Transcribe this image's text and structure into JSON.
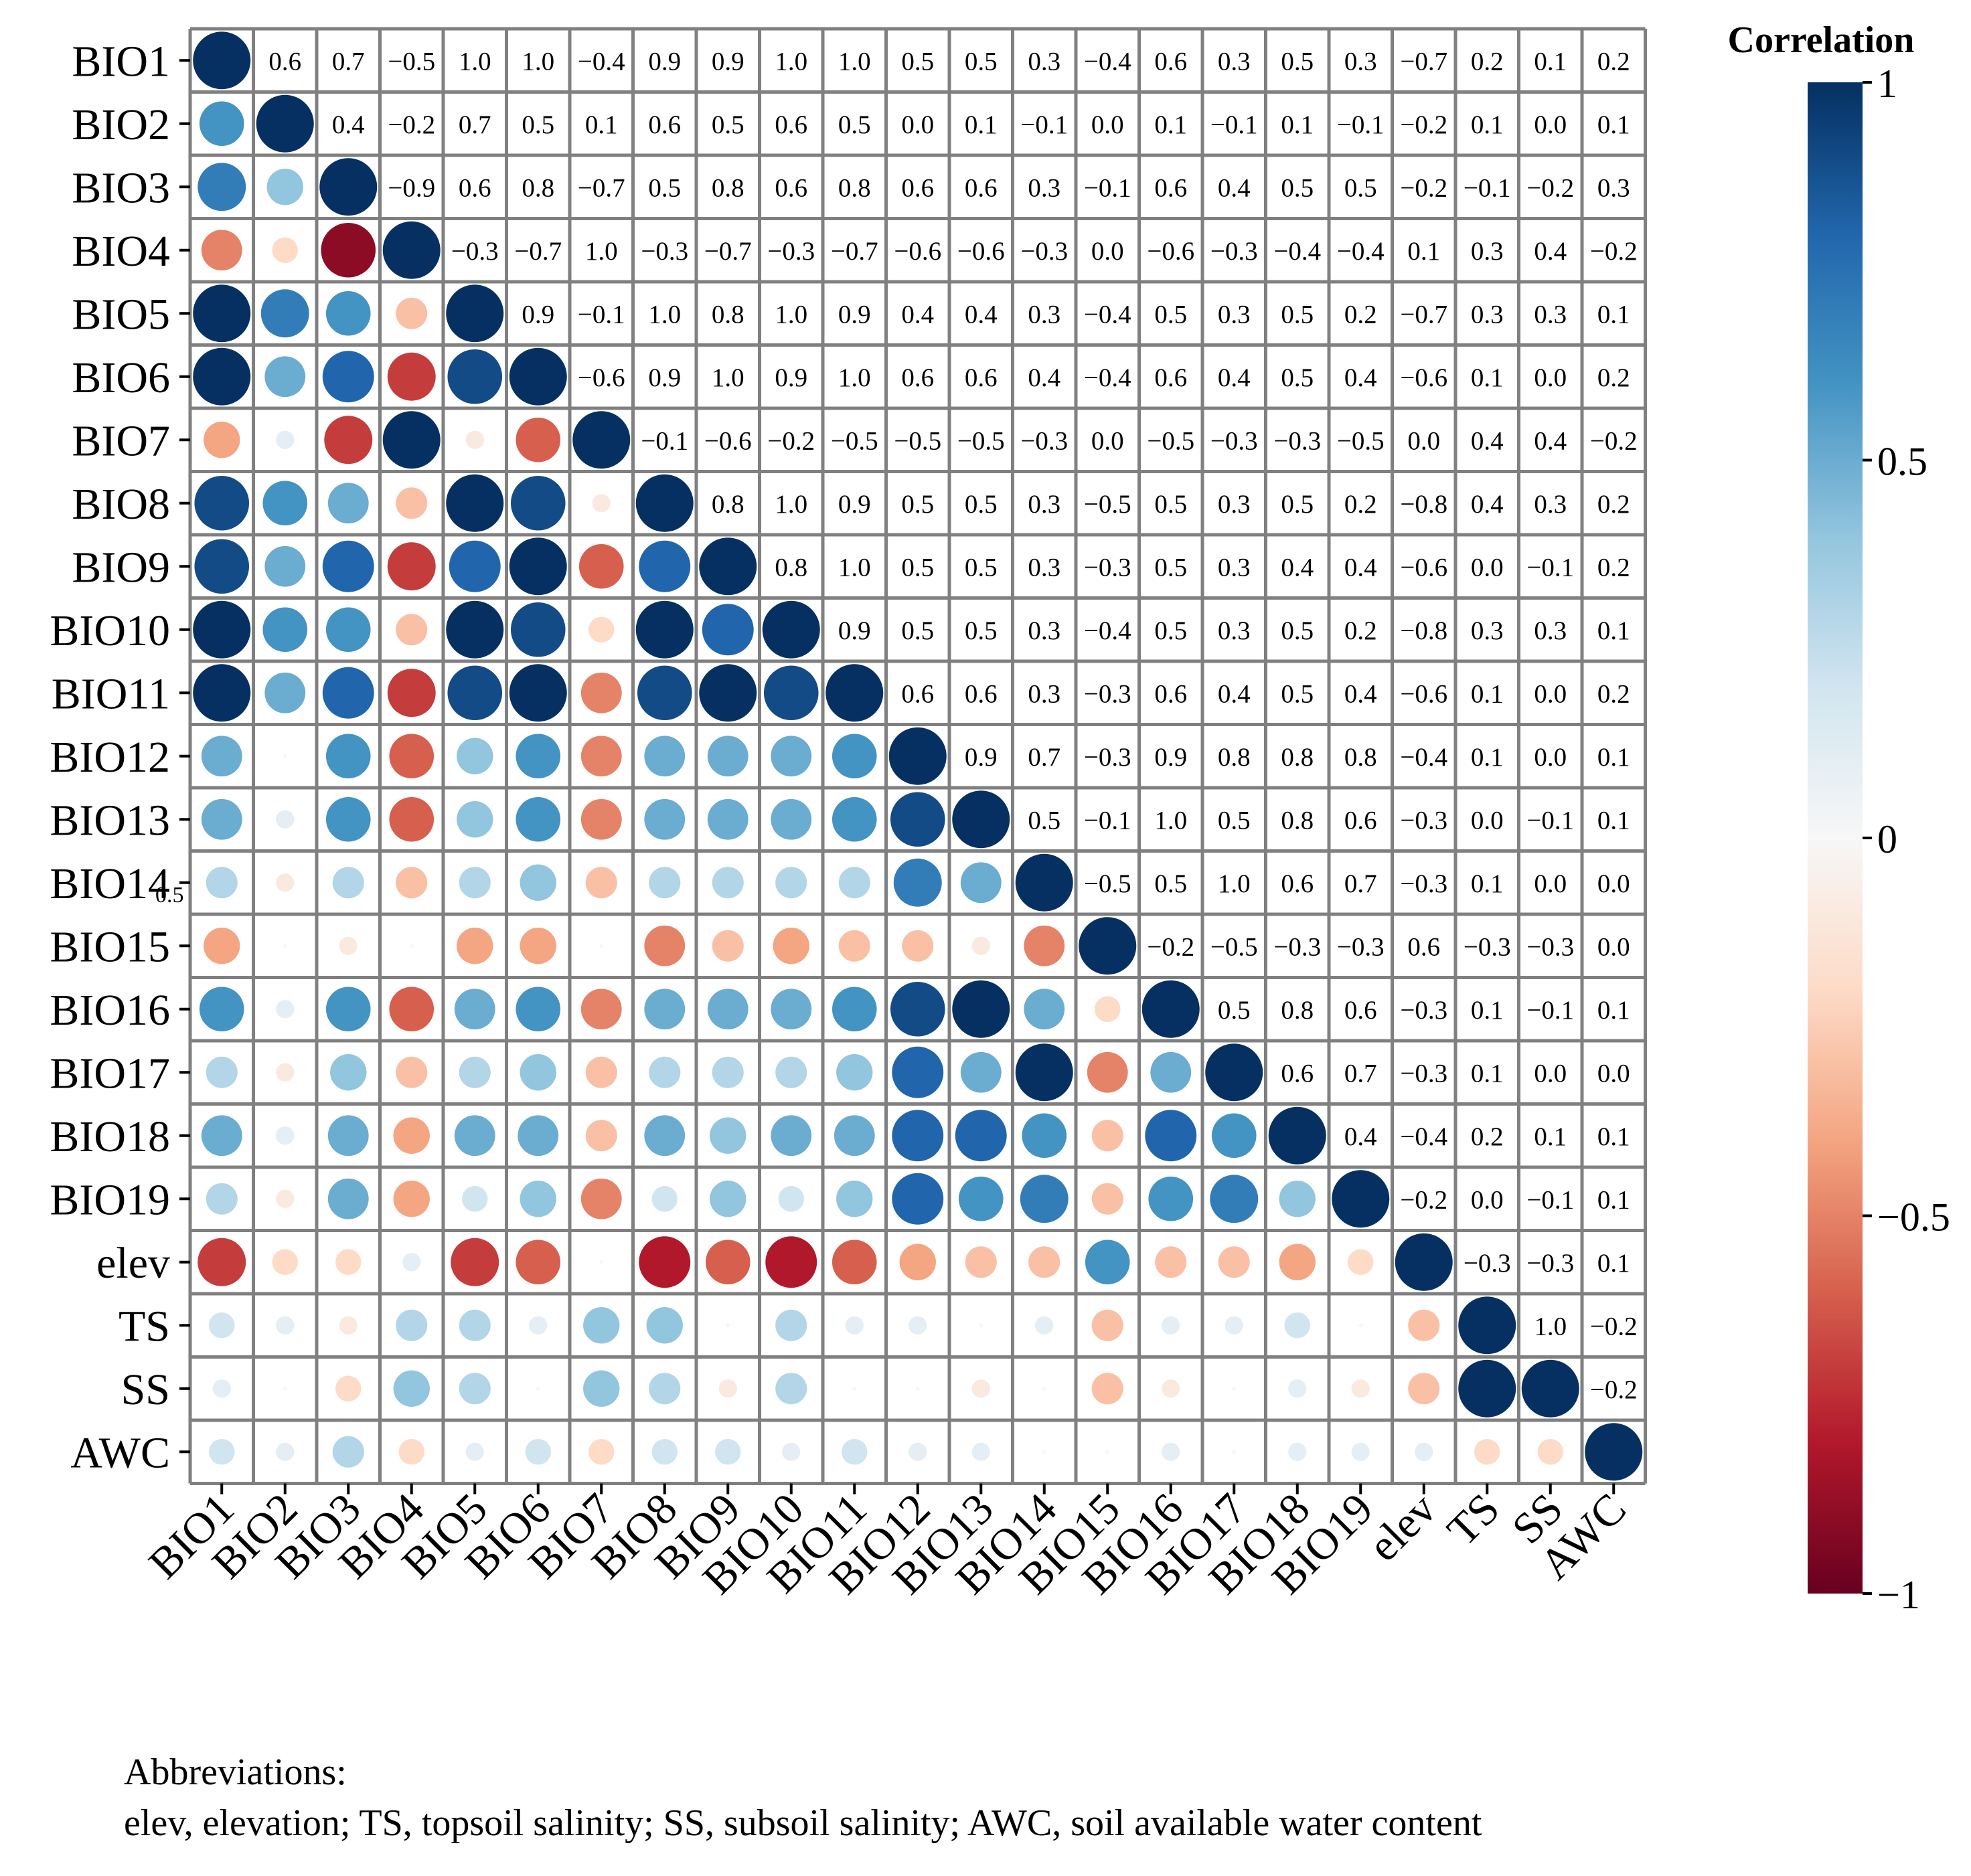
{
  "chart_data": {
    "type": "heatmap",
    "title": "",
    "colorbar": {
      "title": "Correlation",
      "range": [
        -1,
        1
      ],
      "ticks": [
        1,
        0.5,
        0,
        -0.5,
        -1
      ],
      "tick_labels": [
        "1",
        "0.5",
        "0",
        "−0.5",
        "−1"
      ],
      "colors": {
        "neg1": "#67001f",
        "neg075": "#b2182b",
        "neg05": "#d6604d",
        "neg025": "#f4a582",
        "neg01": "#fddbc7",
        "zero": "#f7f7f7",
        "pos01": "#d1e5f0",
        "pos025": "#92c5de",
        "pos05": "#4393c3",
        "pos075": "#2166ac",
        "pos1": "#053061"
      }
    },
    "variables": [
      "BIO1",
      "BIO2",
      "BIO3",
      "BIO4",
      "BIO5",
      "BIO6",
      "BIO7",
      "BIO8",
      "BIO9",
      "BIO10",
      "BIO11",
      "BIO12",
      "BIO13",
      "BIO14",
      "BIO15",
      "BIO16",
      "BIO17",
      "BIO18",
      "BIO19",
      "elev",
      "TS",
      "SS",
      "AWC"
    ],
    "lower_triangle": "circles (size and color proportional to correlation)",
    "upper_triangle": "numeric values",
    "upper_labels": [
      [
        "0.6",
        "0.7",
        "−0.5",
        "1.0",
        "1.0",
        "−0.4",
        "0.9",
        "0.9",
        "1.0",
        "1.0",
        "0.5",
        "0.5",
        "0.3",
        "−0.4",
        "0.6",
        "0.3",
        "0.5",
        "0.3",
        "−0.7",
        "0.2",
        "0.1",
        "0.2"
      ],
      [
        "0.4",
        "−0.2",
        "0.7",
        "0.5",
        "0.1",
        "0.6",
        "0.5",
        "0.6",
        "0.5",
        "0.0",
        "0.1",
        "−0.1",
        "0.0",
        "0.1",
        "−0.1",
        "0.1",
        "−0.1",
        "−0.2",
        "0.1",
        "0.0",
        "0.1"
      ],
      [
        "−0.9",
        "0.6",
        "0.8",
        "−0.7",
        "0.5",
        "0.8",
        "0.6",
        "0.8",
        "0.6",
        "0.6",
        "0.3",
        "−0.1",
        "0.6",
        "0.4",
        "0.5",
        "0.5",
        "−0.2",
        "−0.1",
        "−0.2",
        "0.3"
      ],
      [
        "−0.3",
        "−0.7",
        "1.0",
        "−0.3",
        "−0.7",
        "−0.3",
        "−0.7",
        "−0.6",
        "−0.6",
        "−0.3",
        "0.0",
        "−0.6",
        "−0.3",
        "−0.4",
        "−0.4",
        "0.1",
        "0.3",
        "0.4",
        "−0.2"
      ],
      [
        "0.9",
        "−0.1",
        "1.0",
        "0.8",
        "1.0",
        "0.9",
        "0.4",
        "0.4",
        "0.3",
        "−0.4",
        "0.5",
        "0.3",
        "0.5",
        "0.2",
        "−0.7",
        "0.3",
        "0.3",
        "0.1"
      ],
      [
        "−0.6",
        "0.9",
        "1.0",
        "0.9",
        "1.0",
        "0.6",
        "0.6",
        "0.4",
        "−0.4",
        "0.6",
        "0.4",
        "0.5",
        "0.4",
        "−0.6",
        "0.1",
        "0.0",
        "0.2"
      ],
      [
        "−0.1",
        "−0.6",
        "−0.2",
        "−0.5",
        "−0.5",
        "−0.5",
        "−0.3",
        "0.0",
        "−0.5",
        "−0.3",
        "−0.3",
        "−0.5",
        "0.0",
        "0.4",
        "0.4",
        "−0.2"
      ],
      [
        "0.8",
        "1.0",
        "0.9",
        "0.5",
        "0.5",
        "0.3",
        "−0.5",
        "0.5",
        "0.3",
        "0.5",
        "0.2",
        "−0.8",
        "0.4",
        "0.3",
        "0.2"
      ],
      [
        "0.8",
        "1.0",
        "0.5",
        "0.5",
        "0.3",
        "−0.3",
        "0.5",
        "0.3",
        "0.4",
        "0.4",
        "−0.6",
        "0.0",
        "−0.1",
        "0.2"
      ],
      [
        "0.9",
        "0.5",
        "0.5",
        "0.3",
        "−0.4",
        "0.5",
        "0.3",
        "0.5",
        "0.2",
        "−0.8",
        "0.3",
        "0.3",
        "0.1"
      ],
      [
        "0.6",
        "0.6",
        "0.3",
        "−0.3",
        "0.6",
        "0.4",
        "0.5",
        "0.4",
        "−0.6",
        "0.1",
        "0.0",
        "0.2"
      ],
      [
        "0.9",
        "0.7",
        "−0.3",
        "0.9",
        "0.8",
        "0.8",
        "0.8",
        "−0.4",
        "0.1",
        "0.0",
        "0.1"
      ],
      [
        "0.5",
        "−0.1",
        "1.0",
        "0.5",
        "0.8",
        "0.6",
        "−0.3",
        "0.0",
        "−0.1",
        "0.1"
      ],
      [
        "−0.5",
        "0.5",
        "1.0",
        "0.6",
        "0.7",
        "−0.3",
        "0.1",
        "0.0",
        "0.0"
      ],
      [
        "−0.2",
        "−0.5",
        "−0.3",
        "−0.3",
        "0.6",
        "−0.3",
        "−0.3",
        "0.0"
      ],
      [
        "0.5",
        "0.8",
        "0.6",
        "−0.3",
        "0.1",
        "−0.1",
        "0.1"
      ],
      [
        "0.6",
        "0.7",
        "−0.3",
        "0.1",
        "0.0",
        "0.0"
      ],
      [
        "0.4",
        "−0.4",
        "0.2",
        "0.1",
        "0.1"
      ],
      [
        "−0.2",
        "0.0",
        "−0.1",
        "0.1"
      ],
      [
        "−0.3",
        "−0.3",
        "0.1"
      ],
      [
        "1.0",
        "−0.2"
      ],
      [
        "−0.2"
      ],
      []
    ],
    "lower_values": [
      [],
      [
        0.6
      ],
      [
        0.7,
        0.4
      ],
      [
        -0.5,
        -0.2,
        -0.9
      ],
      [
        1.0,
        0.7,
        0.6,
        -0.3
      ],
      [
        1.0,
        0.5,
        0.8,
        -0.7,
        0.9
      ],
      [
        -0.4,
        0.1,
        -0.7,
        1.0,
        -0.1,
        -0.6
      ],
      [
        0.9,
        0.6,
        0.5,
        -0.3,
        1.0,
        0.9,
        -0.1
      ],
      [
        0.9,
        0.5,
        0.8,
        -0.7,
        0.8,
        1.0,
        -0.6,
        0.8
      ],
      [
        1.0,
        0.6,
        0.6,
        -0.3,
        1.0,
        0.9,
        -0.2,
        1.0,
        0.8
      ],
      [
        1.0,
        0.5,
        0.8,
        -0.7,
        0.9,
        1.0,
        -0.5,
        0.9,
        1.0,
        0.9
      ],
      [
        0.5,
        0.0,
        0.6,
        -0.6,
        0.4,
        0.6,
        -0.5,
        0.5,
        0.5,
        0.5,
        0.6
      ],
      [
        0.5,
        0.1,
        0.6,
        -0.6,
        0.4,
        0.6,
        -0.5,
        0.5,
        0.5,
        0.5,
        0.6,
        0.9
      ],
      [
        0.3,
        -0.1,
        0.3,
        -0.3,
        0.3,
        0.4,
        -0.3,
        0.3,
        0.3,
        0.3,
        0.3,
        0.7,
        0.5
      ],
      [
        -0.4,
        0.0,
        -0.1,
        0.0,
        -0.4,
        -0.4,
        0.0,
        -0.5,
        -0.3,
        -0.4,
        -0.3,
        -0.3,
        -0.1,
        -0.5
      ],
      [
        0.6,
        0.1,
        0.6,
        -0.6,
        0.5,
        0.6,
        -0.5,
        0.5,
        0.5,
        0.5,
        0.6,
        0.9,
        1.0,
        0.5,
        -0.2
      ],
      [
        0.3,
        -0.1,
        0.4,
        -0.3,
        0.3,
        0.4,
        -0.3,
        0.3,
        0.3,
        0.3,
        0.4,
        0.8,
        0.5,
        1.0,
        -0.5,
        0.5
      ],
      [
        0.5,
        0.1,
        0.5,
        -0.4,
        0.5,
        0.5,
        -0.3,
        0.5,
        0.4,
        0.5,
        0.5,
        0.8,
        0.8,
        0.6,
        -0.3,
        0.8,
        0.6
      ],
      [
        0.3,
        -0.1,
        0.5,
        -0.4,
        0.2,
        0.4,
        -0.5,
        0.2,
        0.4,
        0.2,
        0.4,
        0.8,
        0.6,
        0.7,
        -0.3,
        0.6,
        0.7,
        0.4
      ],
      [
        -0.7,
        -0.2,
        -0.2,
        0.1,
        -0.7,
        -0.6,
        0.0,
        -0.8,
        -0.6,
        -0.8,
        -0.6,
        -0.4,
        -0.3,
        -0.3,
        0.6,
        -0.3,
        -0.3,
        -0.4,
        -0.2
      ],
      [
        0.2,
        0.1,
        -0.1,
        0.3,
        0.3,
        0.1,
        0.4,
        0.4,
        0.0,
        0.3,
        0.1,
        0.1,
        0.0,
        0.1,
        -0.3,
        0.1,
        0.1,
        0.2,
        0.0,
        -0.3
      ],
      [
        0.1,
        0.0,
        -0.2,
        0.4,
        0.3,
        0.0,
        0.4,
        0.3,
        -0.1,
        0.3,
        0.0,
        0.0,
        -0.1,
        0.0,
        -0.3,
        -0.1,
        0.0,
        0.1,
        -0.1,
        -0.3,
        1.0
      ],
      [
        0.2,
        0.1,
        0.3,
        -0.2,
        0.1,
        0.2,
        -0.2,
        0.2,
        0.2,
        0.1,
        0.2,
        0.1,
        0.1,
        0.0,
        0.0,
        0.1,
        0.0,
        0.1,
        0.1,
        0.1,
        -0.2,
        -0.2
      ]
    ],
    "stray_label": "0.5"
  },
  "footnote": {
    "line1": "Abbreviations:",
    "line2": "elev, elevation; TS, topsoil salinity; SS, subsoil salinity; AWC, soil available water content"
  }
}
